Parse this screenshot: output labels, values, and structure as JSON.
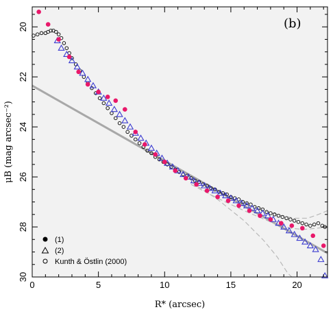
{
  "chart_data": {
    "type": "scatter",
    "panel_label": "(b)",
    "xlabel": "R* (arcsec)",
    "ylabel": "μB (mag arcsec⁻²)",
    "xlim": [
      0,
      22.3
    ],
    "ylim": [
      30,
      19.2
    ],
    "y_inverted": true,
    "x_ticks": [
      0,
      5,
      10,
      15,
      20
    ],
    "y_ticks": [
      20,
      22,
      24,
      26,
      28,
      30
    ],
    "grid": false,
    "background": "#f2f2f2",
    "legend_position": "bottom-left",
    "legend": [
      {
        "marker": "filled-circle",
        "label": "(1)"
      },
      {
        "marker": "open-triangle",
        "label": "(2)"
      },
      {
        "marker": "open-circle",
        "label": "Kunth & Östlin (2000)"
      }
    ],
    "series": [
      {
        "name": "(1)",
        "marker": "filled-circle",
        "color": "#e8186a",
        "x": [
          0.5,
          1.2,
          2.0,
          2.8,
          3.5,
          4.2,
          5.0,
          5.7,
          6.3,
          7.0,
          7.8,
          8.5,
          9.3,
          10.0,
          10.8,
          11.6,
          12.4,
          13.2,
          14.0,
          14.8,
          15.6,
          16.4,
          17.2,
          18.0,
          18.8,
          19.6,
          20.4,
          21.2,
          22.0
        ],
        "y": [
          19.4,
          19.9,
          20.5,
          21.2,
          21.8,
          22.3,
          22.6,
          22.8,
          22.95,
          23.3,
          24.2,
          24.7,
          25.1,
          25.4,
          25.75,
          26.05,
          26.3,
          26.55,
          26.8,
          26.95,
          27.15,
          27.35,
          27.55,
          27.7,
          27.85,
          27.95,
          28.05,
          28.35,
          28.75
        ]
      },
      {
        "name": "(2)",
        "marker": "open-triangle",
        "color": "#3b3bd0",
        "x": [
          1.9,
          2.2,
          2.6,
          3.0,
          3.4,
          3.8,
          4.2,
          4.6,
          5.0,
          5.4,
          5.8,
          6.2,
          6.6,
          7.0,
          7.4,
          7.8,
          8.2,
          8.6,
          9.0,
          9.4,
          9.8,
          10.2,
          10.6,
          11.0,
          11.4,
          11.8,
          12.2,
          12.6,
          13.0,
          13.4,
          13.8,
          14.2,
          14.6,
          15.0,
          15.4,
          15.8,
          16.2,
          16.6,
          17.0,
          17.4,
          17.8,
          18.2,
          18.6,
          19.0,
          19.4,
          19.8,
          20.2,
          20.6,
          21.0,
          21.4,
          21.8,
          22.1
        ],
        "y": [
          20.55,
          20.85,
          21.1,
          21.35,
          21.6,
          21.85,
          22.1,
          22.35,
          22.6,
          22.85,
          23.05,
          23.3,
          23.5,
          23.75,
          24.0,
          24.25,
          24.45,
          24.65,
          24.85,
          25.05,
          25.25,
          25.45,
          25.6,
          25.75,
          25.9,
          26.0,
          26.15,
          26.25,
          26.35,
          26.45,
          26.55,
          26.65,
          26.75,
          26.85,
          26.95,
          27.05,
          27.15,
          27.25,
          27.35,
          27.45,
          27.55,
          27.7,
          27.85,
          28.0,
          28.15,
          28.3,
          28.45,
          28.6,
          28.75,
          28.9,
          29.3,
          29.95
        ]
      },
      {
        "name": "Kunth & Östlin (2000)",
        "marker": "open-circle",
        "color": "#000000",
        "x": [
          0.1,
          0.4,
          0.7,
          1.0,
          1.2,
          1.4,
          1.6,
          1.8,
          2.0,
          2.2,
          2.4,
          2.6,
          2.8,
          3.0,
          3.3,
          3.6,
          3.9,
          4.2,
          4.5,
          4.8,
          5.1,
          5.4,
          5.7,
          6.0,
          6.3,
          6.6,
          6.9,
          7.2,
          7.5,
          7.8,
          8.1,
          8.4,
          8.7,
          9.0,
          9.3,
          9.6,
          9.9,
          10.2,
          10.5,
          10.8,
          11.1,
          11.4,
          11.7,
          12.0,
          12.3,
          12.6,
          12.9,
          13.2,
          13.5,
          13.8,
          14.1,
          14.4,
          14.7,
          15.0,
          15.3,
          15.6,
          15.9,
          16.2,
          16.5,
          16.8,
          17.1,
          17.4,
          17.7,
          18.0,
          18.3,
          18.6,
          18.9,
          19.2,
          19.5,
          19.8,
          20.1,
          20.4,
          20.7,
          21.0,
          21.3,
          21.6,
          21.9,
          22.1
        ],
        "y": [
          20.35,
          20.3,
          20.25,
          20.25,
          20.2,
          20.15,
          20.15,
          20.2,
          20.3,
          20.45,
          20.65,
          20.85,
          21.05,
          21.25,
          21.5,
          21.75,
          22.0,
          22.25,
          22.45,
          22.65,
          22.85,
          23.05,
          23.25,
          23.45,
          23.65,
          23.85,
          24.0,
          24.2,
          24.35,
          24.5,
          24.65,
          24.8,
          24.95,
          25.05,
          25.2,
          25.3,
          25.4,
          25.5,
          25.6,
          25.7,
          25.8,
          25.9,
          25.95,
          26.05,
          26.15,
          26.2,
          26.3,
          26.35,
          26.45,
          26.5,
          26.6,
          26.65,
          26.7,
          26.8,
          26.85,
          26.9,
          27.0,
          27.05,
          27.1,
          27.2,
          27.25,
          27.3,
          27.4,
          27.45,
          27.5,
          27.55,
          27.6,
          27.65,
          27.7,
          27.75,
          27.8,
          27.85,
          27.9,
          27.95,
          27.9,
          27.85,
          27.95,
          28.0
        ]
      }
    ],
    "fit_line": {
      "color": "#a8a8a8",
      "x": [
        0,
        22.3
      ],
      "y": [
        22.35,
        29.05
      ]
    },
    "dashed_lines": [
      {
        "color": "#b8b8b8",
        "x": [
          12.0,
          14.0,
          16.0,
          17.5,
          18.5,
          19.3,
          19.6
        ],
        "y": [
          26.2,
          26.9,
          27.75,
          28.55,
          29.2,
          29.85,
          30.0
        ]
      },
      {
        "color": "#b8b8b8",
        "x": [
          12.0,
          14.0,
          16.0,
          18.0,
          19.5,
          20.5,
          21.5,
          22.3
        ],
        "y": [
          26.3,
          26.85,
          27.35,
          27.8,
          28.05,
          28.1,
          28.05,
          28.0
        ]
      },
      {
        "color": "#b8b8b8",
        "x": [
          16.0,
          17.5,
          18.8,
          19.8,
          20.8,
          21.6,
          22.3
        ],
        "y": [
          27.05,
          27.35,
          27.55,
          27.65,
          27.65,
          27.5,
          27.35
        ]
      }
    ]
  }
}
